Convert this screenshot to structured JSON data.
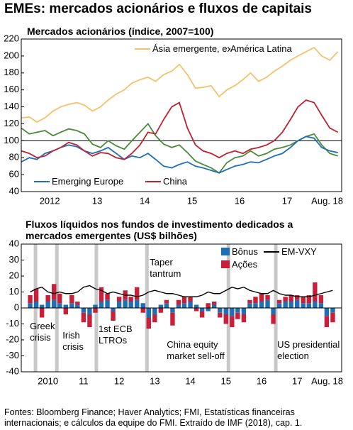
{
  "title": "EMEs: mercados acionários e fluxos de capitais",
  "source": "Fontes: Bloomberg Finance; Haver Analytics; FMI, Estatísticas financeiras internacionais; e cálculos da equipe do FMI. Extraído de IMF (2018), cap. 1.",
  "chart_data": [
    {
      "type": "line",
      "title": "Mercados acionários (índice, 2007=100)",
      "x": [
        2011.9,
        2012.07,
        2012.23,
        2012.4,
        2012.57,
        2012.73,
        2012.9,
        2013.07,
        2013.23,
        2013.4,
        2013.57,
        2013.73,
        2013.9,
        2014.07,
        2014.23,
        2014.4,
        2014.57,
        2014.73,
        2014.9,
        2015.07,
        2015.23,
        2015.4,
        2015.57,
        2015.73,
        2015.9,
        2016.07,
        2016.23,
        2016.4,
        2016.57,
        2016.73,
        2016.9,
        2017.07,
        2017.23,
        2017.4,
        2017.57,
        2017.73,
        2017.9,
        2018.07,
        2018.23,
        2018.4,
        2018.57
      ],
      "series": [
        {
          "name": "Ásia emergente, exclusive China",
          "color": "#f5c16c",
          "values": [
            127,
            128,
            122,
            127,
            135,
            140,
            143,
            145,
            142,
            135,
            140,
            148,
            155,
            160,
            168,
            172,
            175,
            170,
            178,
            182,
            190,
            178,
            162,
            163,
            165,
            152,
            160,
            165,
            172,
            180,
            170,
            175,
            182,
            188,
            195,
            200,
            205,
            210,
            200,
            195,
            205
          ]
        },
        {
          "name": "América Latina",
          "color": "#4a8a3a",
          "values": [
            115,
            108,
            110,
            112,
            106,
            110,
            114,
            112,
            108,
            96,
            92,
            100,
            94,
            90,
            100,
            110,
            120,
            106,
            96,
            92,
            95,
            86,
            76,
            72,
            68,
            62,
            74,
            80,
            82,
            88,
            82,
            85,
            90,
            92,
            95,
            100,
            105,
            108,
            95,
            85,
            82
          ]
        },
        {
          "name": "Emerging Europe",
          "color": "#1f6fb5",
          "values": [
            75,
            80,
            78,
            85,
            88,
            92,
            95,
            93,
            88,
            85,
            88,
            92,
            85,
            78,
            82,
            80,
            85,
            78,
            70,
            68,
            72,
            75,
            70,
            68,
            65,
            62,
            66,
            70,
            72,
            75,
            74,
            78,
            82,
            85,
            92,
            100,
            105,
            103,
            92,
            88,
            86
          ]
        },
        {
          "name": "China",
          "color": "#c0212f",
          "values": [
            88,
            85,
            80,
            82,
            88,
            92,
            98,
            95,
            88,
            82,
            86,
            85,
            80,
            78,
            85,
            95,
            110,
            108,
            125,
            140,
            145,
            115,
            95,
            88,
            85,
            80,
            85,
            88,
            85,
            90,
            92,
            95,
            100,
            110,
            125,
            140,
            148,
            145,
            130,
            115,
            110
          ]
        }
      ],
      "hline": 100,
      "xlim": [
        2011.9,
        2018.65
      ],
      "xticks": [
        {
          "value": 2012.5,
          "label": "2012"
        },
        {
          "value": 2013.5,
          "label": "13"
        },
        {
          "value": 2014.5,
          "label": "14"
        },
        {
          "value": 2015.5,
          "label": "15"
        },
        {
          "value": 2016.5,
          "label": "16"
        },
        {
          "value": 2017.5,
          "label": "17"
        },
        {
          "value": 2018.58,
          "label": "Aug. 18"
        }
      ],
      "ylim": [
        40,
        220
      ],
      "yticks": [
        40,
        60,
        80,
        100,
        120,
        140,
        160,
        180,
        200,
        220
      ]
    },
    {
      "type": "bar",
      "title": "Fluxos líquidos nos fundos de investimento dedicados a mercados emergentes (US$ bilhões)",
      "x": [
        2010,
        2010.17,
        2010.33,
        2010.5,
        2010.67,
        2010.83,
        2011,
        2011.17,
        2011.33,
        2011.5,
        2011.67,
        2011.83,
        2012,
        2012.17,
        2012.33,
        2012.5,
        2012.67,
        2012.83,
        2013,
        2013.17,
        2013.33,
        2013.5,
        2013.67,
        2013.83,
        2014,
        2014.17,
        2014.33,
        2014.5,
        2014.67,
        2014.83,
        2015,
        2015.17,
        2015.33,
        2015.5,
        2015.67,
        2015.83,
        2016,
        2016.17,
        2016.33,
        2016.5,
        2016.67,
        2016.83,
        2017,
        2017.17,
        2017.33,
        2017.5,
        2017.67,
        2017.83,
        2018,
        2018.17,
        2018.33,
        2018.5
      ],
      "series": [
        {
          "name": "Bônus",
          "color": "#1f6fb5",
          "values": [
            3,
            4,
            2,
            4,
            5,
            3,
            2,
            3,
            2,
            -3,
            -4,
            2,
            4,
            5,
            -2,
            4,
            5,
            4,
            5,
            3,
            -6,
            -4,
            2,
            3,
            -3,
            2,
            3,
            4,
            2,
            -2,
            -2,
            2,
            -3,
            -4,
            -5,
            -3,
            -4,
            3,
            3,
            4,
            5,
            -4,
            3,
            4,
            4,
            5,
            3,
            3,
            4,
            3,
            -5,
            -3
          ]
        },
        {
          "name": "Ações",
          "color": "#c8203a",
          "values": [
            5,
            8,
            -6,
            4,
            10,
            6,
            -4,
            5,
            2,
            -6,
            -8,
            -3,
            9,
            4,
            -6,
            3,
            6,
            3,
            8,
            -3,
            -7,
            -5,
            -3,
            2,
            -8,
            3,
            4,
            3,
            -2,
            -4,
            3,
            2,
            -3,
            -6,
            -7,
            -4,
            -5,
            2,
            4,
            5,
            3,
            -6,
            2,
            3,
            4,
            3,
            4,
            5,
            12,
            5,
            -7,
            -6
          ]
        },
        {
          "name": "EM-VXY",
          "type": "line",
          "color": "#000000",
          "values": [
            10,
            12,
            13,
            10,
            9,
            10,
            9,
            9,
            10,
            13,
            14,
            12,
            11,
            9,
            10,
            9,
            8,
            8,
            7,
            8,
            10,
            11,
            10,
            9,
            9,
            8,
            7,
            7,
            7,
            8,
            10,
            9,
            9,
            11,
            13,
            12,
            13,
            11,
            10,
            9,
            9,
            11,
            9,
            8,
            8,
            7,
            7,
            7,
            8,
            9,
            10,
            11
          ]
        }
      ],
      "events": [
        {
          "x": 2010.15,
          "label": "Greek crisis"
        },
        {
          "x": 2010.75,
          "label": "Irish crisis"
        },
        {
          "x": 2011.86,
          "label": "1st ECB LTROs"
        },
        {
          "x": 2013.28,
          "label": "Taper tantrum"
        },
        {
          "x": 2015.57,
          "label": "China equity market sell-off"
        },
        {
          "x": 2016.9,
          "label": "US presidential election"
        }
      ],
      "xlim": [
        2009.75,
        2018.75
      ],
      "xticks": [
        {
          "value": 2010.5,
          "label": "2010"
        },
        {
          "value": 2011.5,
          "label": "11"
        },
        {
          "value": 2012.5,
          "label": "12"
        },
        {
          "value": 2013.5,
          "label": "13"
        },
        {
          "value": 2014.5,
          "label": "14"
        },
        {
          "value": 2015.5,
          "label": "15"
        },
        {
          "value": 2016.5,
          "label": "16"
        },
        {
          "value": 2017.5,
          "label": "17"
        },
        {
          "value": 2018.58,
          "label": "Aug. 18"
        }
      ],
      "ylim": [
        -40,
        40
      ],
      "yticks": [
        -40,
        -30,
        -20,
        -10,
        0,
        10,
        20,
        30,
        40
      ]
    }
  ]
}
